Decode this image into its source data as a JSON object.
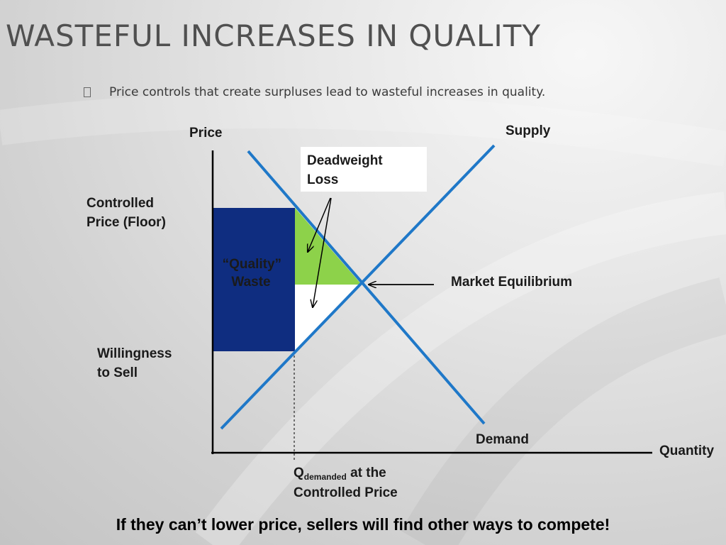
{
  "slide": {
    "title": "WASTEFUL INCREASES IN QUALITY",
    "bullet": "Price controls that create surpluses lead to wasteful increases in quality.",
    "footer": "If they can’t lower price, sellers will find other ways to compete!"
  },
  "diagram": {
    "price_axis_label": "Price",
    "quantity_axis_label": "Quantity",
    "supply_label": "Supply",
    "demand_label": "Demand",
    "deadweight_label_line1": "Deadweight",
    "deadweight_label_line2": "Loss",
    "controlled_price_line1": "Controlled",
    "controlled_price_line2": "Price (Floor)",
    "quality_waste_line1": "“Quality”",
    "quality_waste_line2": "Waste",
    "market_equilibrium_label": "Market Equilibrium",
    "willingness_line1": "Willingness",
    "willingness_line2": "to Sell",
    "q_main": "Q",
    "q_subscript": "demanded",
    "q_suffix": " at the",
    "q_line2": "Controlled Price"
  },
  "colors": {
    "curve_blue": "#1f78c8",
    "waste_navy": "#0f2d80",
    "deadweight_green": "#8dd24a",
    "axis_black": "#000000"
  }
}
